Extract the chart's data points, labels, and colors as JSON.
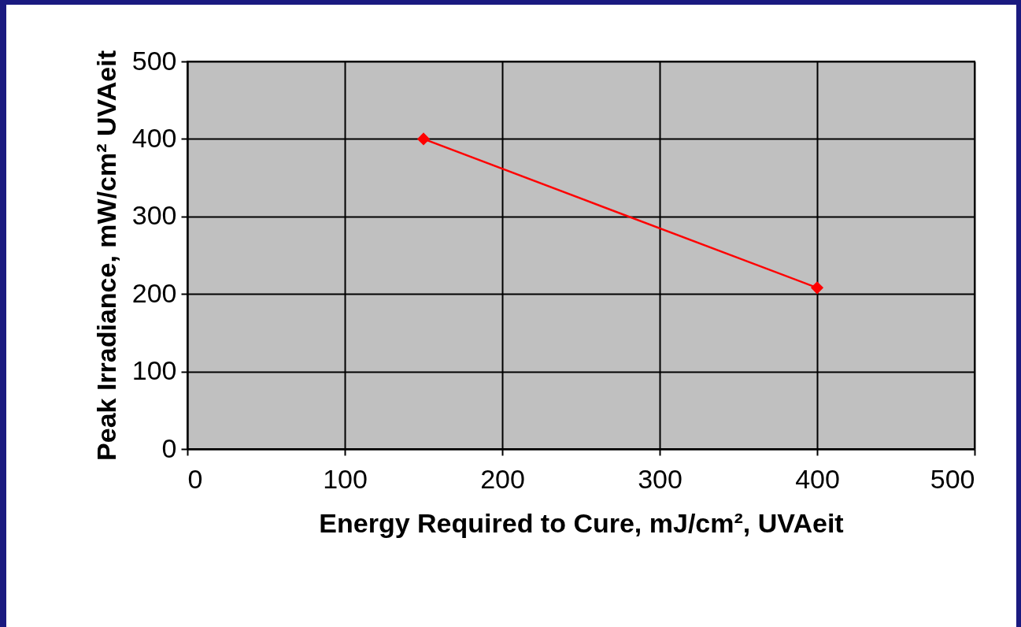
{
  "chart_data": {
    "type": "line",
    "xlabel": "Energy Required to Cure, mJ/cm², UVAeit",
    "ylabel": "Peak Irradiance, mW/cm² UVAeit",
    "x": [
      150,
      400
    ],
    "series": [
      {
        "color": "#ff0000",
        "values": [
          400,
          208
        ]
      }
    ],
    "xlim": [
      0,
      500
    ],
    "xticks": [
      0,
      100,
      200,
      300,
      400,
      500
    ],
    "ylim": [
      0,
      500
    ],
    "yticks": [
      0,
      100,
      200,
      300,
      400,
      500
    ],
    "grid": true,
    "marker": "diamond",
    "line_style": "solid"
  }
}
